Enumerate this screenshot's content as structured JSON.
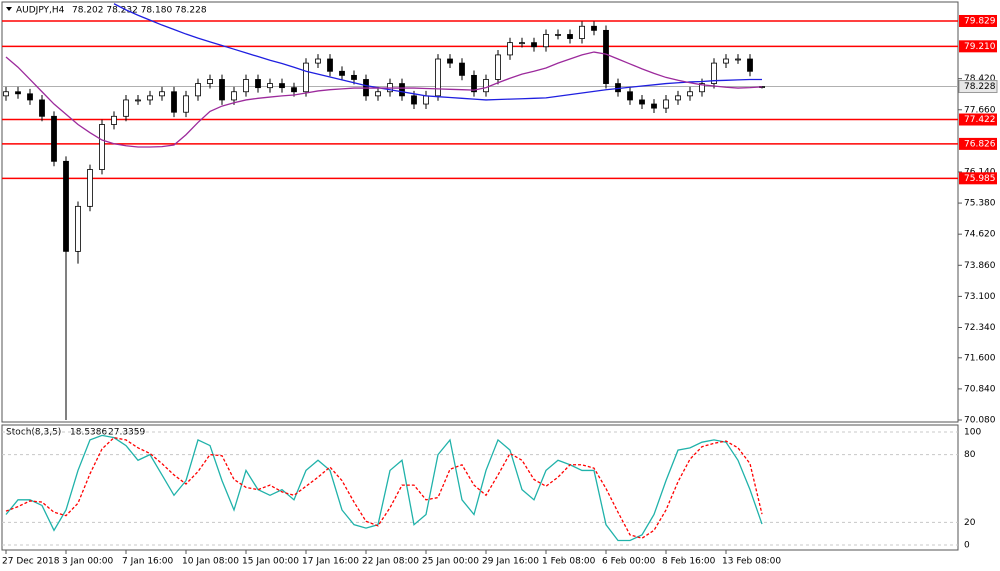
{
  "chart_data": [
    {
      "type": "candlestick",
      "symbol": "AUDJPY,H4",
      "info": "78.202 78.232 78.180 78.228",
      "categories": [
        "27 Dec 2018",
        null,
        null,
        null,
        null,
        "3 Jan 00:00",
        null,
        null,
        null,
        null,
        "7 Jan 16:00",
        null,
        null,
        null,
        null,
        "10 Jan 08:00",
        null,
        null,
        null,
        null,
        "15 Jan 00:00",
        null,
        null,
        null,
        null,
        "17 Jan 16:00",
        null,
        null,
        null,
        null,
        "22 Jan 08:00",
        null,
        null,
        null,
        null,
        "25 Jan 00:00",
        null,
        null,
        null,
        null,
        "29 Jan 16:00",
        null,
        null,
        null,
        null,
        "1 Feb 08:00",
        null,
        null,
        null,
        null,
        "6 Feb 00:00",
        null,
        null,
        null,
        null,
        "8 Feb 16:00",
        null,
        null,
        null,
        null,
        "13 Feb 08:00",
        null,
        null,
        null
      ],
      "open": [
        78.0,
        78.1,
        78.05,
        77.9,
        77.5,
        76.4,
        74.2,
        75.3,
        76.2,
        77.3,
        77.5,
        77.9,
        77.9,
        78.0,
        78.1,
        77.6,
        78.0,
        78.3,
        78.4,
        77.9,
        78.1,
        78.4,
        78.2,
        78.3,
        78.2,
        78.1,
        78.8,
        78.9,
        78.6,
        78.5,
        78.4,
        78.0,
        78.1,
        78.3,
        78.0,
        77.8,
        78.0,
        78.9,
        78.8,
        78.5,
        78.1,
        78.4,
        79.0,
        79.3,
        79.3,
        79.2,
        79.5,
        79.5,
        79.4,
        79.7,
        79.6,
        78.3,
        78.1,
        77.9,
        77.8,
        77.7,
        77.9,
        78.0,
        78.1,
        78.3,
        78.8,
        78.9,
        78.9,
        78.202
      ],
      "high": [
        78.22,
        78.22,
        78.17,
        78.02,
        77.62,
        76.52,
        75.42,
        76.32,
        77.42,
        77.62,
        78.02,
        78.02,
        78.12,
        78.22,
        78.22,
        78.12,
        78.42,
        78.52,
        78.52,
        78.22,
        78.52,
        78.52,
        78.42,
        78.42,
        78.32,
        78.92,
        79.02,
        79.02,
        78.72,
        78.62,
        78.52,
        78.22,
        78.42,
        78.42,
        78.12,
        78.12,
        79.02,
        79.02,
        78.92,
        78.62,
        78.52,
        79.12,
        79.42,
        79.42,
        79.42,
        79.62,
        79.62,
        79.62,
        79.82,
        79.82,
        79.72,
        78.42,
        78.22,
        78.02,
        77.92,
        78.02,
        78.12,
        78.22,
        78.42,
        78.92,
        79.02,
        79.02,
        79.02,
        78.232
      ],
      "low": [
        77.88,
        77.93,
        77.78,
        77.38,
        76.28,
        70.08,
        73.9,
        75.18,
        76.08,
        77.18,
        77.38,
        77.78,
        77.78,
        77.88,
        77.48,
        77.48,
        77.88,
        78.18,
        77.78,
        77.78,
        77.98,
        78.08,
        78.08,
        78.08,
        77.98,
        77.98,
        78.68,
        78.48,
        78.38,
        78.28,
        77.88,
        77.88,
        77.98,
        77.88,
        77.68,
        77.68,
        77.88,
        78.68,
        78.38,
        77.98,
        77.98,
        78.28,
        78.88,
        79.18,
        79.08,
        79.08,
        79.38,
        79.28,
        79.28,
        79.48,
        78.18,
        77.98,
        77.78,
        77.68,
        77.58,
        77.58,
        77.78,
        77.88,
        77.98,
        78.18,
        78.68,
        78.78,
        78.48,
        78.18
      ],
      "close": [
        78.1,
        78.05,
        77.9,
        77.5,
        76.4,
        74.2,
        75.3,
        76.2,
        77.3,
        77.5,
        77.9,
        77.9,
        78.0,
        78.1,
        77.6,
        78.0,
        78.3,
        78.4,
        77.9,
        78.1,
        78.4,
        78.2,
        78.3,
        78.2,
        78.1,
        78.8,
        78.9,
        78.6,
        78.5,
        78.4,
        78.0,
        78.1,
        78.3,
        78.0,
        77.8,
        78.0,
        78.9,
        78.8,
        78.5,
        78.1,
        78.4,
        79.0,
        79.3,
        79.3,
        79.2,
        79.5,
        79.5,
        79.4,
        79.7,
        79.6,
        78.3,
        78.1,
        77.9,
        77.8,
        77.7,
        77.9,
        78.0,
        78.1,
        78.3,
        78.8,
        78.9,
        78.9,
        78.6,
        78.228
      ],
      "lines": [
        {
          "color": "#1f1fe0",
          "values": [
            null,
            null,
            null,
            null,
            null,
            null,
            null,
            null,
            null,
            80.25,
            80.1,
            79.97,
            79.85,
            79.73,
            79.62,
            79.51,
            79.41,
            79.32,
            79.23,
            79.14,
            79.05,
            78.96,
            78.87,
            78.79,
            78.7,
            78.6,
            78.53,
            78.46,
            78.39,
            78.32,
            78.25,
            78.2,
            78.15,
            78.1,
            78.05,
            78.0,
            77.98,
            77.96,
            77.94,
            77.92,
            77.9,
            77.91,
            77.92,
            77.93,
            77.94,
            77.95,
            77.99,
            78.03,
            78.07,
            78.11,
            78.15,
            78.18,
            78.21,
            78.24,
            78.27,
            78.3,
            78.32,
            78.34,
            78.35,
            78.37,
            78.38,
            78.39,
            78.4,
            78.4
          ]
        },
        {
          "color": "#9c2a9c",
          "values": [
            78.95,
            78.7,
            78.4,
            78.1,
            77.8,
            77.55,
            77.3,
            77.1,
            76.92,
            76.83,
            76.78,
            76.75,
            76.75,
            76.76,
            76.8,
            77.05,
            77.35,
            77.62,
            77.75,
            77.83,
            77.9,
            77.94,
            77.97,
            78.0,
            78.02,
            78.07,
            78.12,
            78.15,
            78.17,
            78.19,
            78.19,
            78.19,
            78.19,
            78.19,
            78.19,
            78.18,
            78.17,
            78.16,
            78.15,
            78.14,
            78.2,
            78.32,
            78.43,
            78.53,
            78.6,
            78.68,
            78.8,
            78.9,
            79.0,
            79.07,
            79.02,
            78.9,
            78.78,
            78.66,
            78.55,
            78.45,
            78.38,
            78.32,
            78.27,
            78.24,
            78.21,
            78.19,
            78.2,
            78.22
          ]
        }
      ],
      "ylim": [
        70.031,
        80.293
      ],
      "yticks": [
        {
          "value": 70.08,
          "label": "70.080"
        },
        {
          "value": 70.84,
          "label": "70.840"
        },
        {
          "value": 71.6,
          "label": "71.600"
        },
        {
          "value": 72.34,
          "label": "72.340"
        },
        {
          "value": 73.1,
          "label": "73.100"
        },
        {
          "value": 73.86,
          "label": "73.860"
        },
        {
          "value": 74.62,
          "label": "74.620"
        },
        {
          "value": 75.38,
          "label": "75.380"
        },
        {
          "value": 76.14,
          "label": "76.140"
        },
        {
          "value": 77.66,
          "label": "77.660"
        },
        {
          "value": 78.42,
          "label": "78.420"
        }
      ],
      "levels": [
        79.829,
        {
          "value": 79.21,
          "label": "79.210"
        },
        77.422,
        76.826,
        75.985
      ],
      "level_color": "#ff0000",
      "current_price": 78.228,
      "up_color": "#ffffff",
      "down_color": "#000000"
    },
    {
      "type": "line",
      "title": "Stoch(8,3,5)",
      "series": [
        {
          "color": "#20b2aa",
          "values": [
            27,
            40,
            40,
            35,
            13,
            31,
            66,
            93,
            97,
            95,
            88,
            75,
            80,
            62,
            44,
            57,
            93,
            88,
            57,
            31,
            66,
            49,
            44,
            49,
            40,
            66,
            75,
            66,
            31,
            18,
            15,
            18,
            66,
            75,
            18,
            27,
            80,
            93,
            40,
            27,
            66,
            93,
            84,
            49,
            40,
            66,
            75,
            71,
            66,
            66,
            18,
            4,
            4,
            9,
            27,
            57,
            84,
            86,
            91,
            93,
            91,
            75,
            49,
            18.5386
          ]
        },
        {
          "color": "#ff0000",
          "dashed": true,
          "values": [
            30,
            34,
            39,
            38,
            29,
            26,
            37,
            63,
            85,
            95,
            93,
            86,
            81,
            72,
            62,
            54,
            65,
            80,
            79,
            58,
            51,
            49,
            53,
            47,
            44,
            52,
            60,
            69,
            57,
            38,
            21,
            17,
            33,
            53,
            53,
            40,
            42,
            67,
            71,
            53,
            44,
            62,
            81,
            75,
            58,
            52,
            60,
            71,
            71,
            68,
            50,
            29,
            9,
            6,
            13,
            31,
            56,
            76,
            87,
            90,
            92,
            86,
            72,
            27.3359
          ]
        }
      ],
      "ylim": [
        -4.4,
        106.2
      ],
      "yticks": [
        0,
        20,
        80,
        100
      ]
    }
  ]
}
